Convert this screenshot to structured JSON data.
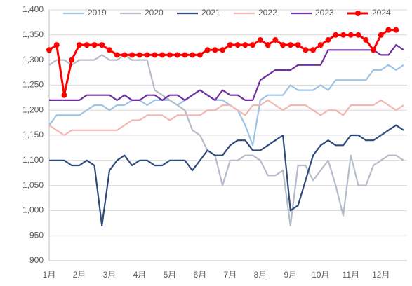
{
  "chart_data": {
    "type": "line",
    "categories": [
      "1月",
      null,
      null,
      null,
      "2月",
      null,
      null,
      null,
      "3月",
      null,
      null,
      null,
      "4月",
      null,
      null,
      null,
      "5月",
      null,
      null,
      null,
      "6月",
      null,
      null,
      null,
      "7月",
      null,
      null,
      null,
      "8月",
      null,
      null,
      null,
      "9月",
      null,
      null,
      null,
      "10月",
      null,
      null,
      null,
      "11月",
      null,
      null,
      null,
      "12月",
      null,
      null,
      null
    ],
    "series": [
      {
        "name": "2019",
        "color": "#9dc3e6",
        "values": [
          1170,
          1190,
          1190,
          1190,
          1190,
          1200,
          1210,
          1210,
          1200,
          1210,
          1210,
          1220,
          1220,
          1210,
          1220,
          1220,
          1220,
          1210,
          1220,
          1230,
          1240,
          1230,
          1220,
          1220,
          1210,
          1200,
          1170,
          1130,
          1220,
          1230,
          1230,
          1230,
          1250,
          1240,
          1240,
          1240,
          1250,
          1240,
          1260,
          1260,
          1260,
          1260,
          1260,
          1280,
          1280,
          1290,
          1280,
          1290
        ]
      },
      {
        "name": "2020",
        "color": "#b4bcca",
        "values": [
          1290,
          1300,
          1300,
          1290,
          1300,
          1300,
          1300,
          1310,
          1300,
          1300,
          1310,
          1300,
          1300,
          1300,
          1240,
          1230,
          1220,
          1210,
          1200,
          1160,
          1150,
          1120,
          1110,
          1050,
          1100,
          1100,
          1110,
          1110,
          1100,
          1070,
          1070,
          1080,
          970,
          1090,
          1090,
          1060,
          1080,
          1100,
          1050,
          990,
          1110,
          1050,
          1050,
          1090,
          1100,
          1110,
          1110,
          1100
        ]
      },
      {
        "name": "2021",
        "color": "#2f4b7c",
        "values": [
          1100,
          1100,
          1100,
          1090,
          1090,
          1100,
          1090,
          970,
          1080,
          1100,
          1110,
          1090,
          1100,
          1100,
          1090,
          1090,
          1100,
          1100,
          1100,
          1080,
          1100,
          1120,
          1110,
          1110,
          1130,
          1140,
          1140,
          1120,
          1120,
          1130,
          1140,
          1150,
          1000,
          1010,
          1060,
          1110,
          1130,
          1140,
          1130,
          1130,
          1150,
          1150,
          1140,
          1140,
          1150,
          1160,
          1170,
          1160
        ]
      },
      {
        "name": "2022",
        "color": "#f4b6b0",
        "values": [
          1170,
          1160,
          1150,
          1160,
          1160,
          1160,
          1160,
          1160,
          1160,
          1160,
          1170,
          1180,
          1180,
          1190,
          1190,
          1190,
          1180,
          1190,
          1190,
          1190,
          1190,
          1200,
          1200,
          1210,
          1210,
          1200,
          1190,
          1210,
          1210,
          1220,
          1210,
          1200,
          1210,
          1210,
          1210,
          1200,
          1190,
          1200,
          1200,
          1190,
          1210,
          1210,
          1210,
          1210,
          1220,
          1210,
          1200,
          1210
        ]
      },
      {
        "name": "2023",
        "color": "#7030a0",
        "values": [
          1220,
          1220,
          1220,
          1220,
          1220,
          1230,
          1230,
          1230,
          1230,
          1220,
          1230,
          1220,
          1220,
          1230,
          1230,
          1220,
          1230,
          1230,
          1220,
          1230,
          1240,
          1230,
          1220,
          1240,
          1230,
          1230,
          1220,
          1220,
          1260,
          1270,
          1280,
          1280,
          1280,
          1290,
          1290,
          1290,
          1290,
          1320,
          1320,
          1320,
          1320,
          1320,
          1320,
          1320,
          1310,
          1310,
          1330,
          1320
        ]
      },
      {
        "name": "2024",
        "color": "#ff0000",
        "markers": true,
        "values": [
          1320,
          1330,
          1230,
          1300,
          1330,
          1330,
          1330,
          1330,
          1320,
          1310,
          1310,
          1310,
          1310,
          1310,
          1310,
          1310,
          1310,
          1310,
          1310,
          1310,
          1310,
          1320,
          1320,
          1320,
          1330,
          1330,
          1330,
          1330,
          1340,
          1330,
          1340,
          1330,
          1330,
          1330,
          1320,
          1320,
          1330,
          1340,
          1350,
          1350,
          1350,
          1350,
          1340,
          1320,
          1350,
          1360,
          1360,
          null
        ]
      }
    ],
    "ylim": [
      900,
      1400
    ],
    "yticks": [
      {
        "value": 900,
        "label": "900"
      },
      {
        "value": 950,
        "label": "950"
      },
      {
        "value": 1000,
        "label": "1,000"
      },
      {
        "value": 1050,
        "label": "1,050"
      },
      {
        "value": 1100,
        "label": "1,100"
      },
      {
        "value": 1150,
        "label": "1,150"
      },
      {
        "value": 1200,
        "label": "1,200"
      },
      {
        "value": 1250,
        "label": "1,250"
      },
      {
        "value": 1300,
        "label": "1,300"
      },
      {
        "value": 1350,
        "label": "1,350"
      },
      {
        "value": 1400,
        "label": "1,400"
      }
    ],
    "grid": true,
    "legend": "top"
  }
}
